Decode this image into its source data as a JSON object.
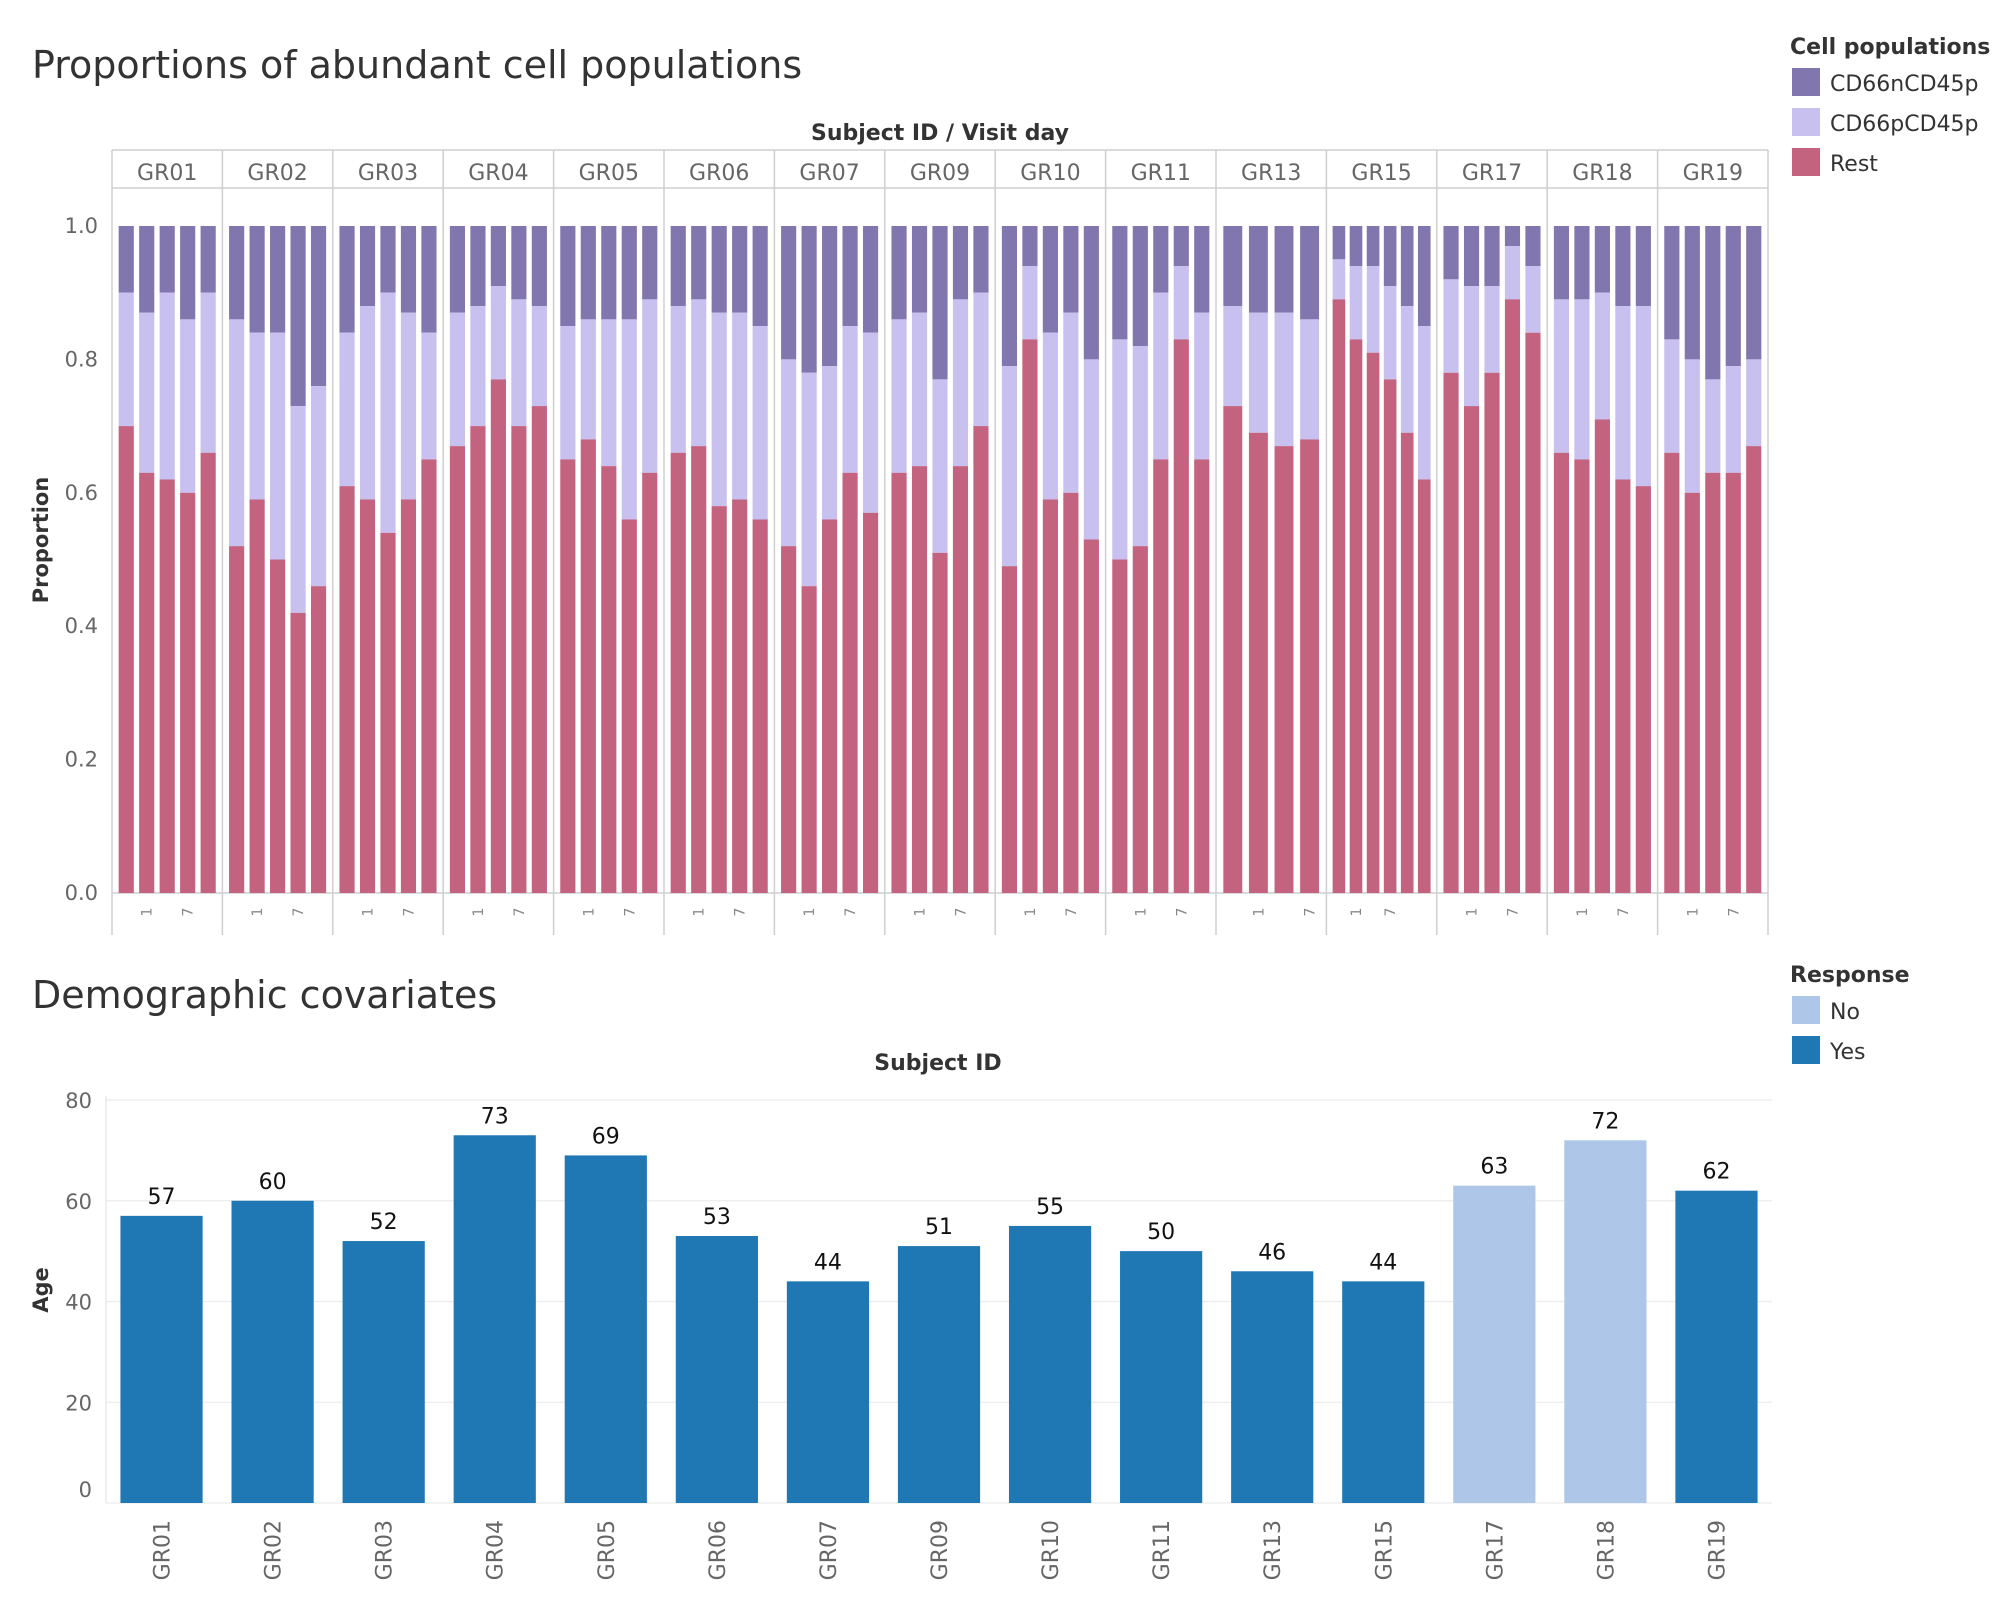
{
  "chart_data": [
    {
      "type": "bar",
      "stacked": true,
      "title": "Proportions of abundant cell populations",
      "column_header": "Subject ID  /  Visit day",
      "ylabel": "Proportion",
      "ylim": [
        0,
        1
      ],
      "yticks": [
        "0.0",
        "0.2",
        "0.4",
        "0.6",
        "0.8",
        "1.0"
      ],
      "grid": false,
      "legend": {
        "title": "Cell populations",
        "position": "top-right",
        "items": [
          {
            "name": "CD66nCD45p",
            "color": "#8276ae"
          },
          {
            "name": "CD66pCD45p",
            "color": "#c8c0ef"
          },
          {
            "name": "Rest",
            "color": "#c4637f"
          }
        ]
      },
      "day_labels": [
        "1",
        "7"
      ],
      "groups": [
        {
          "subject": "GR01",
          "rest": [
            0.7,
            0.63,
            0.62,
            0.6,
            0.66
          ],
          "top": [
            0.9,
            0.87,
            0.9,
            0.86,
            0.9
          ]
        },
        {
          "subject": "GR02",
          "rest": [
            0.52,
            0.59,
            0.5,
            0.42,
            0.46
          ],
          "top": [
            0.86,
            0.84,
            0.84,
            0.73,
            0.76
          ]
        },
        {
          "subject": "GR03",
          "rest": [
            0.61,
            0.59,
            0.54,
            0.59,
            0.65
          ],
          "top": [
            0.84,
            0.88,
            0.9,
            0.87,
            0.84
          ]
        },
        {
          "subject": "GR04",
          "rest": [
            0.67,
            0.7,
            0.77,
            0.7,
            0.73
          ],
          "top": [
            0.87,
            0.88,
            0.91,
            0.89,
            0.88
          ]
        },
        {
          "subject": "GR05",
          "rest": [
            0.65,
            0.68,
            0.64,
            0.56,
            0.63
          ],
          "top": [
            0.85,
            0.86,
            0.86,
            0.86,
            0.89
          ]
        },
        {
          "subject": "GR06",
          "rest": [
            0.66,
            0.67,
            0.58,
            0.59,
            0.56
          ],
          "top": [
            0.88,
            0.89,
            0.87,
            0.87,
            0.85
          ]
        },
        {
          "subject": "GR07",
          "rest": [
            0.52,
            0.46,
            0.56,
            0.63,
            0.57
          ],
          "top": [
            0.8,
            0.78,
            0.79,
            0.85,
            0.84
          ]
        },
        {
          "subject": "GR09",
          "rest": [
            0.63,
            0.64,
            0.51,
            0.64,
            0.7
          ],
          "top": [
            0.86,
            0.87,
            0.77,
            0.89,
            0.9
          ]
        },
        {
          "subject": "GR10",
          "rest": [
            0.49,
            0.83,
            0.59,
            0.6,
            0.53
          ],
          "top": [
            0.79,
            0.94,
            0.84,
            0.87,
            0.8
          ]
        },
        {
          "subject": "GR11",
          "rest": [
            0.5,
            0.52,
            0.65,
            0.83,
            0.65
          ],
          "top": [
            0.83,
            0.82,
            0.9,
            0.94,
            0.87
          ]
        },
        {
          "subject": "GR13",
          "rest": [
            0.73,
            0.69,
            0.67,
            0.68
          ],
          "top": [
            0.88,
            0.87,
            0.87,
            0.86
          ]
        },
        {
          "subject": "GR15",
          "rest": [
            0.89,
            0.83,
            0.81,
            0.77,
            0.69,
            0.62
          ],
          "top": [
            0.95,
            0.94,
            0.94,
            0.91,
            0.88,
            0.85
          ]
        },
        {
          "subject": "GR17",
          "rest": [
            0.78,
            0.73,
            0.78,
            0.89,
            0.84
          ],
          "top": [
            0.92,
            0.91,
            0.91,
            0.97,
            0.94
          ]
        },
        {
          "subject": "GR18",
          "rest": [
            0.66,
            0.65,
            0.71,
            0.62,
            0.61
          ],
          "top": [
            0.89,
            0.89,
            0.9,
            0.88,
            0.88
          ]
        },
        {
          "subject": "GR19",
          "rest": [
            0.66,
            0.6,
            0.63,
            0.63,
            0.67
          ],
          "top": [
            0.83,
            0.8,
            0.77,
            0.79,
            0.8
          ]
        }
      ]
    },
    {
      "type": "bar",
      "title": "Demographic covariates",
      "column_header": "Subject ID",
      "ylabel": "Age",
      "ylim": [
        0,
        80
      ],
      "yticks": [
        "0",
        "20",
        "40",
        "60",
        "80"
      ],
      "grid": true,
      "legend": {
        "title": "Response",
        "position": "top-right",
        "items": [
          {
            "name": "No",
            "color": "#aec7e8"
          },
          {
            "name": "Yes",
            "color": "#1f77b4"
          }
        ]
      },
      "categories": [
        "GR01",
        "GR02",
        "GR03",
        "GR04",
        "GR05",
        "GR06",
        "GR07",
        "GR09",
        "GR10",
        "GR11",
        "GR13",
        "GR15",
        "GR17",
        "GR18",
        "GR19"
      ],
      "values": [
        57,
        60,
        52,
        73,
        69,
        53,
        44,
        51,
        55,
        50,
        46,
        44,
        63,
        72,
        62
      ],
      "response": [
        "Yes",
        "Yes",
        "Yes",
        "Yes",
        "Yes",
        "Yes",
        "Yes",
        "Yes",
        "Yes",
        "Yes",
        "Yes",
        "Yes",
        "No",
        "No",
        "Yes"
      ]
    }
  ]
}
